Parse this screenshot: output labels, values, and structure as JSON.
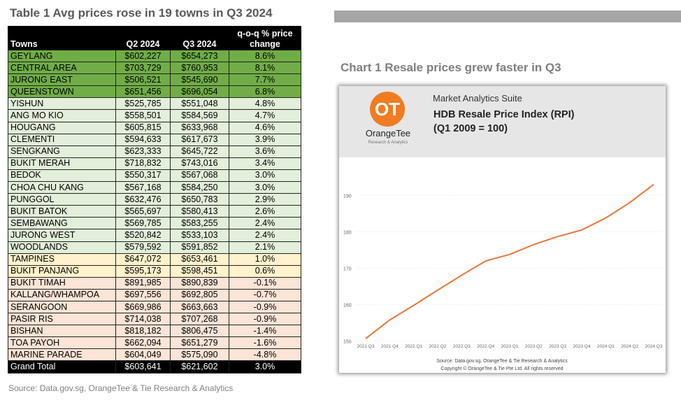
{
  "table": {
    "title": "Table 1 Avg prices rose in 19 towns in Q3 2024",
    "headers": [
      "Towns",
      "Q2 2024",
      "Q3 2024",
      "q-o-q % price change"
    ],
    "rows": [
      {
        "town": "GEYLANG",
        "q2": "$602,227",
        "q3": "$654,273",
        "chg": "8.6%",
        "band": "dg"
      },
      {
        "town": "CENTRAL AREA",
        "q2": "$703,729",
        "q3": "$760,953",
        "chg": "8.1%",
        "band": "dg"
      },
      {
        "town": "JURONG EAST",
        "q2": "$506,521",
        "q3": "$545,690",
        "chg": "7.7%",
        "band": "dg"
      },
      {
        "town": "QUEENSTOWN",
        "q2": "$651,456",
        "q3": "$696,054",
        "chg": "6.8%",
        "band": "dg"
      },
      {
        "town": "YISHUN",
        "q2": "$525,785",
        "q3": "$551,048",
        "chg": "4.8%",
        "band": "lg"
      },
      {
        "town": "ANG MO KIO",
        "q2": "$558,501",
        "q3": "$584,569",
        "chg": "4.7%",
        "band": "lg"
      },
      {
        "town": "HOUGANG",
        "q2": "$605,815",
        "q3": "$633,968",
        "chg": "4.6%",
        "band": "lg"
      },
      {
        "town": "CLEMENTI",
        "q2": "$594,633",
        "q3": "$617,673",
        "chg": "3.9%",
        "band": "lg"
      },
      {
        "town": "SENGKANG",
        "q2": "$623,333",
        "q3": "$645,722",
        "chg": "3.6%",
        "band": "lg"
      },
      {
        "town": "BUKIT MERAH",
        "q2": "$718,832",
        "q3": "$743,016",
        "chg": "3.4%",
        "band": "lg"
      },
      {
        "town": "BEDOK",
        "q2": "$550,317",
        "q3": "$567,068",
        "chg": "3.0%",
        "band": "lg"
      },
      {
        "town": "CHOA CHU KANG",
        "q2": "$567,168",
        "q3": "$584,250",
        "chg": "3.0%",
        "band": "lg"
      },
      {
        "town": "PUNGGOL",
        "q2": "$632,476",
        "q3": "$650,783",
        "chg": "2.9%",
        "band": "lg"
      },
      {
        "town": "BUKIT BATOK",
        "q2": "$565,697",
        "q3": "$580,413",
        "chg": "2.6%",
        "band": "lg"
      },
      {
        "town": "SEMBAWANG",
        "q2": "$569,785",
        "q3": "$583,255",
        "chg": "2.4%",
        "band": "lg"
      },
      {
        "town": "JURONG WEST",
        "q2": "$520,842",
        "q3": "$533,103",
        "chg": "2.4%",
        "band": "lg"
      },
      {
        "town": "WOODLANDS",
        "q2": "$579,592",
        "q3": "$591,852",
        "chg": "2.1%",
        "band": "lg"
      },
      {
        "town": "TAMPINES",
        "q2": "$647,072",
        "q3": "$653,461",
        "chg": "1.0%",
        "band": "ye"
      },
      {
        "town": "BUKIT PANJANG",
        "q2": "$595,173",
        "q3": "$598,451",
        "chg": "0.6%",
        "band": "ye"
      },
      {
        "town": "BUKIT TIMAH",
        "q2": "$891,985",
        "q3": "$890,839",
        "chg": "-0.1%",
        "band": "rd"
      },
      {
        "town": "KALLANG/WHAMPOA",
        "q2": "$697,556",
        "q3": "$692,805",
        "chg": "-0.7%",
        "band": "rd"
      },
      {
        "town": "SERANGOON",
        "q2": "$669,986",
        "q3": "$663,663",
        "chg": "-0.9%",
        "band": "rd"
      },
      {
        "town": "PASIR RIS",
        "q2": "$714,038",
        "q3": "$707,268",
        "chg": "-0.9%",
        "band": "rd"
      },
      {
        "town": "BISHAN",
        "q2": "$818,182",
        "q3": "$806,475",
        "chg": "-1.4%",
        "band": "rd"
      },
      {
        "town": "TOA PAYOH",
        "q2": "$662,094",
        "q3": "$651,279",
        "chg": "-1.6%",
        "band": "rd"
      },
      {
        "town": "MARINE PARADE",
        "q2": "$604,049",
        "q3": "$575,090",
        "chg": "-4.8%",
        "band": "rd"
      }
    ],
    "total": {
      "town": "Grand Total",
      "q2": "$603,641",
      "q3": "$621,602",
      "chg": "3.0%"
    },
    "band_colors": {
      "dg": "#70ad47",
      "lg": "#e2efda",
      "ye": "#fff2cc",
      "rd": "#fce4d6"
    },
    "source": "Source: Data.gov.sg, OrangeTee & Tie Research & Analytics"
  },
  "chart": {
    "title": "Chart 1 Resale prices grew faster in Q3",
    "logo_text": "OT",
    "logo_name": "OrangeTee",
    "logo_sub": "Research & Analytics",
    "suite": "Market Analytics Suite",
    "heading1": "HDB Resale Price Index (RPI)",
    "heading2": "(Q1 2009 = 100)",
    "source": "Source: Data.gov.sg, OrangeTee & Tie Research & Analytics",
    "copyright": "Copyright © OrangeTee & Tie Pte Ltd. All rights reserved"
  },
  "chart_data": {
    "type": "line",
    "categories": [
      "2021 Q3",
      "2021 Q4",
      "2022 Q1",
      "2022 Q2",
      "2022 Q3",
      "2022 Q4",
      "2023 Q1",
      "2023 Q2",
      "2023 Q3",
      "2023 Q4",
      "2024 Q1",
      "2024 Q2",
      "2024 Q3"
    ],
    "series": [
      {
        "values": [
          150.7,
          155.8,
          159.8,
          164.0,
          168.1,
          172.0,
          173.8,
          176.5,
          178.7,
          180.5,
          183.8,
          188.0,
          193.0
        ],
        "color": "#e9773a"
      }
    ],
    "yticks": [
      150,
      160,
      170,
      180,
      190
    ],
    "ylim": [
      150,
      190
    ],
    "grid": true
  }
}
